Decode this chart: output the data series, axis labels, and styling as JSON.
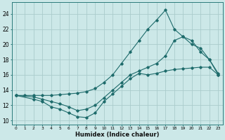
{
  "xlabel": "Humidex (Indice chaleur)",
  "bg_color": "#cce8e8",
  "grid_color": "#aacccc",
  "line_color": "#1e6b6b",
  "xlim": [
    -0.5,
    23.5
  ],
  "ylim": [
    9.5,
    25.5
  ],
  "xticks": [
    0,
    1,
    2,
    3,
    4,
    5,
    6,
    7,
    8,
    9,
    10,
    11,
    12,
    13,
    14,
    15,
    16,
    17,
    18,
    19,
    20,
    21,
    22,
    23
  ],
  "yticks": [
    10,
    12,
    14,
    16,
    18,
    20,
    22,
    24
  ],
  "line1_x": [
    0,
    1,
    2,
    3,
    4,
    5,
    6,
    7,
    8,
    9,
    10,
    11,
    12,
    13,
    14,
    15,
    16,
    17,
    18,
    19,
    20,
    21,
    22,
    23
  ],
  "line1_y": [
    13.3,
    13.3,
    13.3,
    13.3,
    13.3,
    13.4,
    13.5,
    13.6,
    13.8,
    14.2,
    15.0,
    16.0,
    17.5,
    19.0,
    20.5,
    22.0,
    23.2,
    24.5,
    22.0,
    21.0,
    20.0,
    19.5,
    18.0,
    16.0
  ],
  "line2_x": [
    0,
    2,
    3,
    4,
    5,
    6,
    7,
    8,
    9,
    10,
    11,
    12,
    13,
    14,
    15,
    16,
    17,
    18,
    19,
    20,
    21,
    22,
    23
  ],
  "line2_y": [
    13.3,
    13.1,
    12.8,
    12.5,
    12.2,
    11.8,
    11.3,
    11.5,
    12.0,
    13.0,
    14.0,
    15.0,
    16.0,
    16.5,
    17.0,
    17.5,
    18.5,
    20.5,
    21.0,
    20.5,
    19.0,
    18.0,
    16.2
  ],
  "line3_x": [
    0,
    2,
    3,
    4,
    5,
    6,
    7,
    8,
    9,
    10,
    11,
    12,
    13,
    14,
    15,
    16,
    17,
    18,
    19,
    20,
    21,
    22,
    23
  ],
  "line3_y": [
    13.3,
    12.8,
    12.5,
    11.8,
    11.5,
    11.0,
    10.5,
    10.4,
    11.0,
    12.5,
    13.5,
    14.5,
    15.5,
    16.2,
    16.0,
    16.2,
    16.5,
    16.7,
    16.8,
    16.9,
    17.0,
    17.0,
    16.0
  ]
}
